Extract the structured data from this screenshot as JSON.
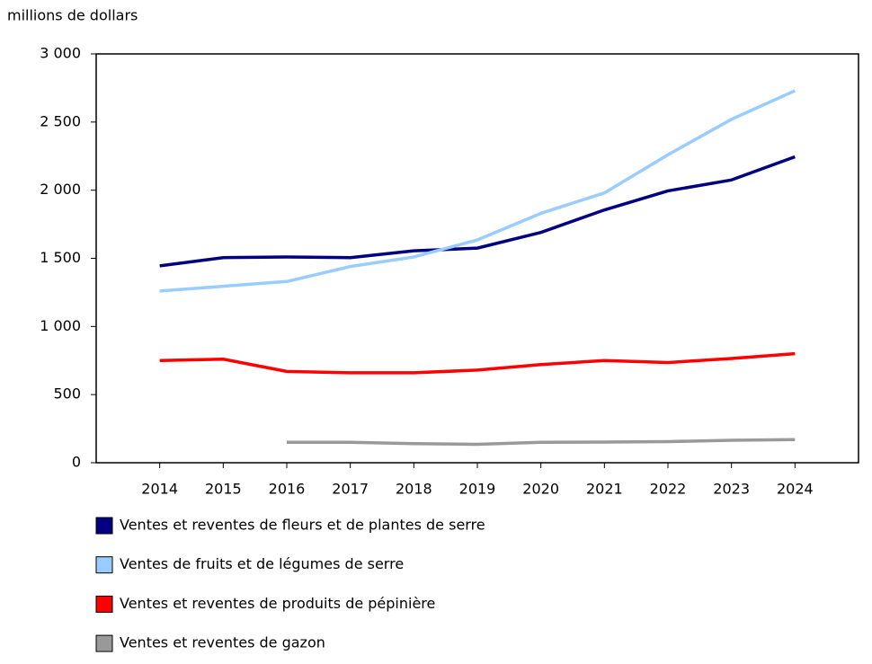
{
  "chart_data": {
    "type": "line",
    "y_label": "millions de dollars",
    "categories": [
      "2014",
      "2015",
      "2016",
      "2017",
      "2018",
      "2019",
      "2020",
      "2021",
      "2022",
      "2023",
      "2024"
    ],
    "series": [
      {
        "name": "Ventes et reventes de fleurs et de plantes de serre",
        "color": "#000080",
        "values": [
          1445,
          1505,
          1510,
          1505,
          1555,
          1575,
          1690,
          1855,
          1995,
          2075,
          2245
        ]
      },
      {
        "name": "Ventes de fruits et de légumes de serre",
        "color": "#99ccff",
        "values": [
          1260,
          1295,
          1330,
          1440,
          1510,
          1635,
          1830,
          1980,
          2260,
          2520,
          2730
        ]
      },
      {
        "name": "Ventes et reventes de produits de pépinière",
        "color": "#ff0000",
        "values": [
          750,
          760,
          670,
          660,
          660,
          680,
          720,
          750,
          735,
          765,
          800
        ]
      },
      {
        "name": "Ventes et reventes de gazon",
        "color": "#999999",
        "values": [
          null,
          null,
          150,
          150,
          140,
          135,
          150,
          152,
          155,
          165,
          170
        ]
      }
    ],
    "ylim": [
      0,
      3000
    ],
    "yticks": [
      0,
      500,
      {
        "value": 1000,
        "label": "1 000"
      },
      {
        "value": 1500,
        "label": "1 500"
      },
      {
        "value": 2000,
        "label": "2 000"
      },
      {
        "value": 2500,
        "label": "2 500"
      },
      {
        "value": 3000,
        "label": "3 000"
      }
    ],
    "grid": false
  }
}
